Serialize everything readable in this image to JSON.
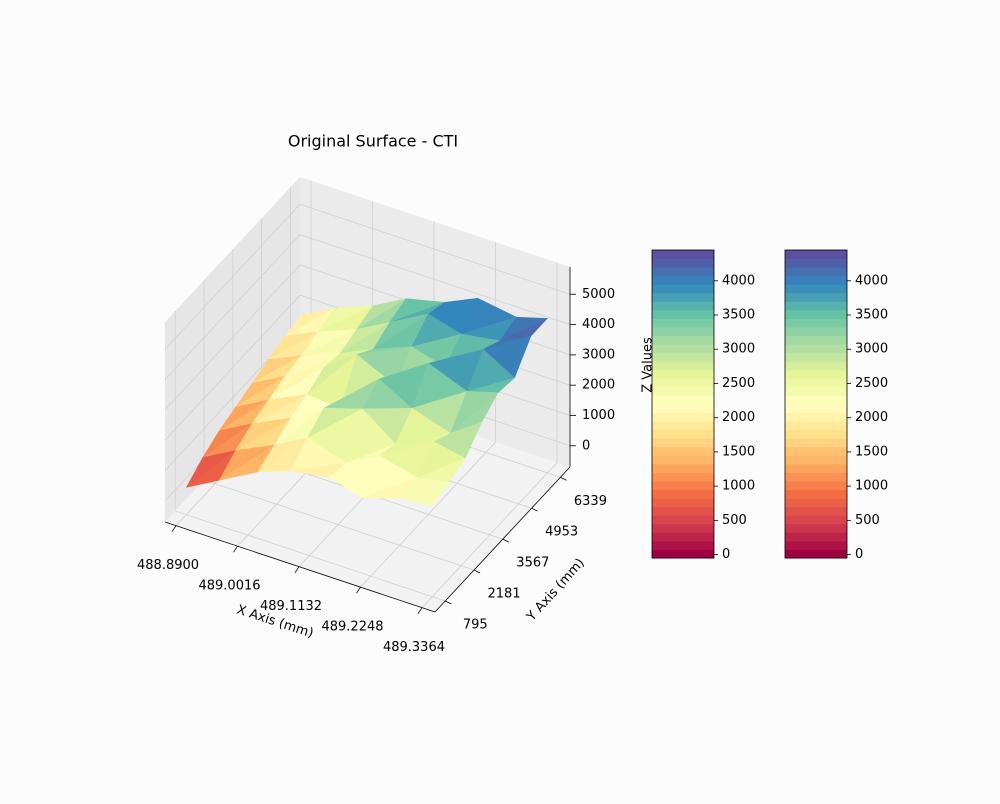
{
  "chart_data": {
    "type": "surface3d",
    "title": "Original Surface - CTI",
    "xlabel": "X Axis (mm)",
    "ylabel": "Y Axis (mm)",
    "zlabel": "Z Values",
    "xlim": [
      488.87,
      489.36
    ],
    "xticks": [
      {
        "value": 488.89,
        "label": "488.8900"
      },
      {
        "value": 489.0016,
        "label": "489.0016"
      },
      {
        "value": 489.1132,
        "label": "489.1132"
      },
      {
        "value": 489.2248,
        "label": "489.2248"
      },
      {
        "value": 489.3364,
        "label": "489.3364"
      }
    ],
    "ylim": [
      300,
      6800
    ],
    "yticks": [
      795,
      2181,
      3567,
      4953,
      6339
    ],
    "zlim": [
      -700,
      5900
    ],
    "zticks": [
      0,
      1000,
      2000,
      3000,
      4000,
      5000
    ],
    "x": [
      488.89,
      488.95,
      489.02,
      489.08,
      489.15,
      489.21,
      489.28,
      489.3364
    ],
    "y": [
      795,
      1587,
      2379,
      3171,
      3963,
      4755,
      5547,
      6339
    ],
    "z": [
      [
        200,
        800,
        1500,
        1900,
        2100,
        1800,
        2200,
        2300
      ],
      [
        600,
        1200,
        1800,
        2400,
        2000,
        2600,
        2300,
        2500
      ],
      [
        900,
        1500,
        2100,
        2800,
        3200,
        2400,
        2900,
        2700
      ],
      [
        1100,
        1700,
        2300,
        2200,
        3600,
        3000,
        2600,
        3300
      ],
      [
        1300,
        1900,
        2600,
        3400,
        2800,
        3900,
        3400,
        3700
      ],
      [
        1500,
        2000,
        2500,
        3000,
        3500,
        3200,
        4200,
        3600
      ],
      [
        1700,
        2200,
        2700,
        3300,
        4000,
        3700,
        3900,
        4400
      ],
      [
        1800,
        2400,
        2900,
        3500,
        3800,
        4300,
        4100,
        4400
      ]
    ],
    "colormap": [
      "#9e0142",
      "#d53e4f",
      "#f46d43",
      "#fdae61",
      "#fee08b",
      "#ffffbf",
      "#e6f598",
      "#abdda4",
      "#66c2a5",
      "#3288bd",
      "#5e4fa2"
    ],
    "grid": true,
    "colorbars": [
      {
        "ylim": [
          -50,
          4450
        ],
        "yticks": [
          0,
          500,
          1000,
          1500,
          2000,
          2500,
          3000,
          3500,
          4000
        ]
      },
      {
        "ylim": [
          -50,
          4450
        ],
        "yticks": [
          0,
          500,
          1000,
          1500,
          2000,
          2500,
          3000,
          3500,
          4000
        ]
      }
    ]
  }
}
